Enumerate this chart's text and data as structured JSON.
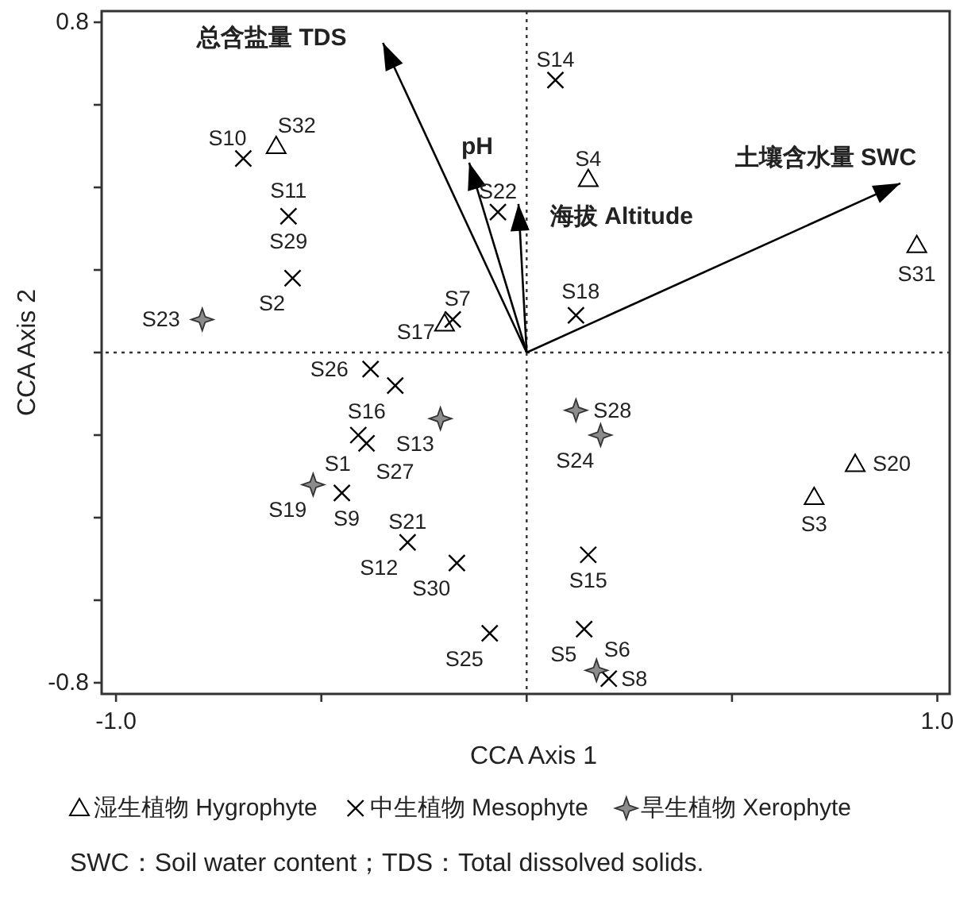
{
  "chart_data": {
    "type": "scatter",
    "xlabel": "CCA Axis 1",
    "ylabel": "CCA Axis 2",
    "xlim": [
      -1.035,
      1.03
    ],
    "ylim": [
      -0.827,
      0.827
    ],
    "xticks": [
      {
        "value": -1.0,
        "label": "-1.0"
      },
      {
        "value": -0.5,
        "label": null
      },
      {
        "value": 0,
        "label": null
      },
      {
        "value": 0.5,
        "label": null
      },
      {
        "value": 1.0,
        "label": "1.0"
      }
    ],
    "yticks": [
      {
        "value": -0.8,
        "label": "-0.8"
      },
      {
        "value": -0.6,
        "label": null
      },
      {
        "value": -0.4,
        "label": null
      },
      {
        "value": -0.2,
        "label": null
      },
      {
        "value": 0,
        "label": null
      },
      {
        "value": 0.2,
        "label": null
      },
      {
        "value": 0.4,
        "label": null
      },
      {
        "value": 0.6,
        "label": null
      },
      {
        "value": 0.8,
        "label": "0.8"
      }
    ],
    "grid": false,
    "legend": "bottom",
    "ref_lines": [
      {
        "axis": "x",
        "value": 0,
        "label": null,
        "line_style": "dotted"
      },
      {
        "axis": "y",
        "value": 0,
        "label": null,
        "line_style": "dotted"
      }
    ],
    "series": [
      {
        "name": "湿生植物 Hygrophyte",
        "type": "scatter",
        "marker": "triangle",
        "color": "#000000",
        "x": [
          -0.61,
          -0.2,
          0.15,
          0.95,
          0.8,
          0.7
        ],
        "values": [
          0.5,
          0.07,
          0.42,
          0.26,
          -0.27,
          -0.35
        ]
      },
      {
        "name": "中生植物 Mesophyte",
        "type": "scatter",
        "marker": "cross",
        "color": "#000000",
        "x": [
          -0.69,
          -0.58,
          -0.57,
          -0.18,
          -0.07,
          0.07,
          0.12,
          -0.38,
          -0.32,
          -0.41,
          -0.39,
          -0.45,
          -0.29,
          -0.17,
          -0.09,
          0.15,
          0.14,
          0.2
        ],
        "values": [
          0.47,
          0.33,
          0.18,
          0.08,
          0.34,
          0.66,
          0.09,
          -0.04,
          -0.08,
          -0.2,
          -0.22,
          -0.34,
          -0.46,
          -0.51,
          -0.68,
          -0.49,
          -0.67,
          -0.79
        ]
      },
      {
        "name": "旱生植物 Xerophyte",
        "type": "scatter",
        "marker": "star",
        "color": "#8c8c8c",
        "x": [
          -0.79,
          -0.21,
          -0.52,
          0.12,
          0.18,
          0.17
        ],
        "values": [
          0.08,
          -0.16,
          -0.32,
          -0.14,
          -0.2,
          -0.77
        ]
      },
      {
        "type": "line",
        "color": "#000000",
        "x": [
          0,
          -0.35
        ],
        "values": [
          0,
          0.75
        ]
      },
      {
        "type": "line",
        "color": "#000000",
        "x": [
          0,
          -0.14
        ],
        "values": [
          0,
          0.46
        ]
      },
      {
        "type": "line",
        "color": "#000000",
        "x": [
          0,
          -0.02
        ],
        "values": [
          0,
          0.36
        ]
      },
      {
        "type": "line",
        "color": "#000000",
        "x": [
          0,
          0.91
        ],
        "values": [
          0,
          0.41
        ]
      }
    ],
    "annotations": [
      {
        "text": "总含盐量 TDS",
        "x": -0.35,
        "y": 0.75
      },
      {
        "text": "pH",
        "x": -0.14,
        "y": 0.46
      },
      {
        "text": "海拔 Altitude",
        "x": -0.02,
        "y": 0.36
      },
      {
        "text": "土壤含水量 SWC",
        "x": 0.91,
        "y": 0.41
      },
      {
        "text": "S10",
        "x": -0.69,
        "y": 0.47
      },
      {
        "text": "S32",
        "x": -0.61,
        "y": 0.5
      },
      {
        "text": "S11",
        "x": -0.58,
        "y": 0.33
      },
      {
        "text": "S29",
        "x": -0.58,
        "y": 0.33
      },
      {
        "text": "S2",
        "x": -0.57,
        "y": 0.18
      },
      {
        "text": "S23",
        "x": -0.79,
        "y": 0.08
      },
      {
        "text": "S7",
        "x": -0.18,
        "y": 0.08
      },
      {
        "text": "S17",
        "x": -0.2,
        "y": 0.07
      },
      {
        "text": "S22",
        "x": -0.07,
        "y": 0.34
      },
      {
        "text": "S14",
        "x": 0.07,
        "y": 0.66
      },
      {
        "text": "S4",
        "x": 0.15,
        "y": 0.42
      },
      {
        "text": "S31",
        "x": 0.95,
        "y": 0.26
      },
      {
        "text": "S18",
        "x": 0.12,
        "y": 0.09
      },
      {
        "text": "S26",
        "x": -0.38,
        "y": -0.04
      },
      {
        "text": "S16",
        "x": -0.32,
        "y": -0.08
      },
      {
        "text": "S13",
        "x": -0.21,
        "y": -0.16
      },
      {
        "text": "S1",
        "x": -0.41,
        "y": -0.2
      },
      {
        "text": "S27",
        "x": -0.39,
        "y": -0.22
      },
      {
        "text": "S19",
        "x": -0.52,
        "y": -0.32
      },
      {
        "text": "S9",
        "x": -0.45,
        "y": -0.34
      },
      {
        "text": "S21",
        "x": -0.29,
        "y": -0.46
      },
      {
        "text": "S12",
        "x": -0.29,
        "y": -0.46
      },
      {
        "text": "S30",
        "x": -0.17,
        "y": -0.51
      },
      {
        "text": "S25",
        "x": -0.09,
        "y": -0.68
      },
      {
        "text": "S28",
        "x": 0.12,
        "y": -0.14
      },
      {
        "text": "S24",
        "x": 0.18,
        "y": -0.2
      },
      {
        "text": "S20",
        "x": 0.8,
        "y": -0.27
      },
      {
        "text": "S3",
        "x": 0.7,
        "y": -0.35
      },
      {
        "text": "S15",
        "x": 0.15,
        "y": -0.49
      },
      {
        "text": "S5",
        "x": 0.14,
        "y": -0.67
      },
      {
        "text": "S6",
        "x": 0.17,
        "y": -0.77
      },
      {
        "text": "S8",
        "x": 0.2,
        "y": -0.79
      },
      "SWC：Soil water content；TDS：Total dissolved solids."
    ]
  }
}
